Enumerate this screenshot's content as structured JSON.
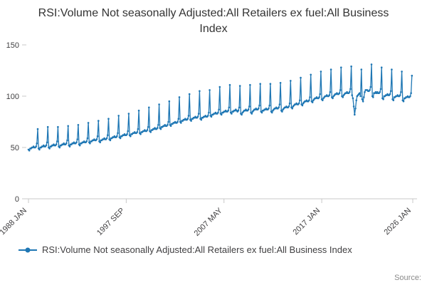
{
  "header": {
    "title": "RSI:Volume Not seasonally Adjusted:All Retailers ex fuel:All Business Index"
  },
  "legend": {
    "label": "RSI:Volume Not seasonally Adjusted:All Retailers ex fuel:All Business Index",
    "marker_color": "#1f77b4"
  },
  "footer": {
    "source_label": "Source:"
  },
  "chart_data": {
    "type": "line",
    "title": "RSI:Volume Not seasonally Adjusted:All Retailers ex fuel:All Business Index",
    "xlabel": "",
    "ylabel": "",
    "ylim": [
      0,
      150
    ],
    "y_ticks": [
      0,
      50,
      100,
      150
    ],
    "x_start": "1988-01",
    "frequency": "monthly",
    "x_slots": 456,
    "x_ticks": [
      {
        "label": "1988 JAN",
        "index": 0
      },
      {
        "label": "1997 SEP",
        "index": 116
      },
      {
        "label": "2007 MAY",
        "index": 232
      },
      {
        "label": "2017 JAN",
        "index": 348
      },
      {
        "label": "2026 JAN",
        "index": 456
      }
    ],
    "grid": false,
    "legend_position": "bottom",
    "series_name": "RSI:Volume Not seasonally Adjusted:All Retailers ex fuel:All Business Index",
    "color": "#1f77b4",
    "values": [
      48,
      47,
      49,
      49,
      50,
      50,
      51,
      50,
      50,
      51,
      54,
      68,
      49,
      48,
      50,
      50,
      51,
      51,
      52,
      51,
      51,
      52,
      55,
      70,
      50,
      49,
      51,
      51,
      52,
      52,
      53,
      52,
      52,
      53,
      56,
      70,
      51,
      50,
      52,
      52,
      53,
      53,
      54,
      53,
      53,
      54,
      57,
      71,
      52,
      51,
      53,
      53,
      54,
      54,
      55,
      54,
      54,
      55,
      58,
      72,
      53,
      52,
      54,
      54,
      55,
      55,
      56,
      55,
      55,
      56,
      59,
      74,
      55,
      54,
      56,
      56,
      57,
      57,
      58,
      57,
      57,
      58,
      61,
      76,
      56,
      55,
      57,
      57,
      58,
      58,
      59,
      58,
      58,
      59,
      62,
      78,
      58,
      57,
      59,
      59,
      60,
      60,
      61,
      60,
      60,
      61,
      64,
      81,
      60,
      59,
      61,
      61,
      62,
      62,
      63,
      62,
      62,
      63,
      66,
      83,
      62,
      61,
      63,
      63,
      64,
      64,
      65,
      64,
      64,
      65,
      68,
      86,
      64,
      63,
      65,
      65,
      66,
      66,
      67,
      66,
      66,
      67,
      70,
      89,
      66,
      65,
      67,
      67,
      68,
      68,
      69,
      68,
      68,
      69,
      72,
      92,
      69,
      68,
      70,
      70,
      71,
      71,
      72,
      71,
      71,
      72,
      75,
      95,
      72,
      71,
      73,
      73,
      74,
      74,
      75,
      74,
      74,
      75,
      78,
      99,
      75,
      74,
      76,
      76,
      77,
      77,
      78,
      77,
      77,
      78,
      81,
      102,
      77,
      76,
      78,
      78,
      79,
      79,
      80,
      79,
      79,
      80,
      83,
      105,
      78,
      77,
      79,
      79,
      80,
      80,
      81,
      80,
      80,
      81,
      84,
      106,
      81,
      80,
      82,
      82,
      83,
      83,
      84,
      83,
      83,
      84,
      87,
      109,
      83,
      82,
      84,
      84,
      85,
      85,
      86,
      85,
      85,
      86,
      89,
      111,
      84,
      83,
      85,
      85,
      86,
      86,
      87,
      86,
      85,
      86,
      89,
      110,
      83,
      82,
      84,
      85,
      86,
      86,
      87,
      86,
      86,
      87,
      90,
      111,
      84,
      83,
      85,
      86,
      87,
      87,
      88,
      87,
      87,
      88,
      91,
      112,
      85,
      84,
      86,
      86,
      87,
      87,
      88,
      87,
      87,
      88,
      91,
      112,
      85,
      84,
      86,
      87,
      88,
      88,
      89,
      88,
      88,
      89,
      92,
      113,
      86,
      85,
      87,
      88,
      89,
      89,
      90,
      89,
      89,
      90,
      93,
      115,
      89,
      88,
      90,
      91,
      92,
      92,
      93,
      92,
      92,
      93,
      96,
      118,
      92,
      91,
      93,
      94,
      95,
      95,
      96,
      95,
      95,
      96,
      99,
      121,
      95,
      94,
      96,
      97,
      98,
      98,
      99,
      98,
      98,
      99,
      102,
      124,
      97,
      96,
      98,
      99,
      100,
      100,
      101,
      100,
      100,
      101,
      104,
      126,
      99,
      98,
      100,
      101,
      102,
      102,
      103,
      102,
      102,
      103,
      106,
      128,
      100,
      99,
      101,
      102,
      103,
      103,
      104,
      103,
      103,
      104,
      107,
      129,
      101,
      98,
      90,
      82,
      88,
      96,
      100,
      101,
      102,
      103,
      100,
      126,
      97,
      95,
      99,
      104,
      106,
      106,
      106,
      105,
      105,
      106,
      109,
      131,
      100,
      99,
      103,
      103,
      104,
      103,
      104,
      103,
      103,
      104,
      107,
      128,
      98,
      97,
      100,
      100,
      101,
      101,
      102,
      101,
      101,
      102,
      105,
      126,
      97,
      96,
      99,
      99,
      100,
      100,
      101,
      100,
      100,
      101,
      104,
      124,
      96,
      95,
      98,
      98,
      99,
      99,
      100,
      99,
      99,
      100,
      103,
      120
    ]
  }
}
